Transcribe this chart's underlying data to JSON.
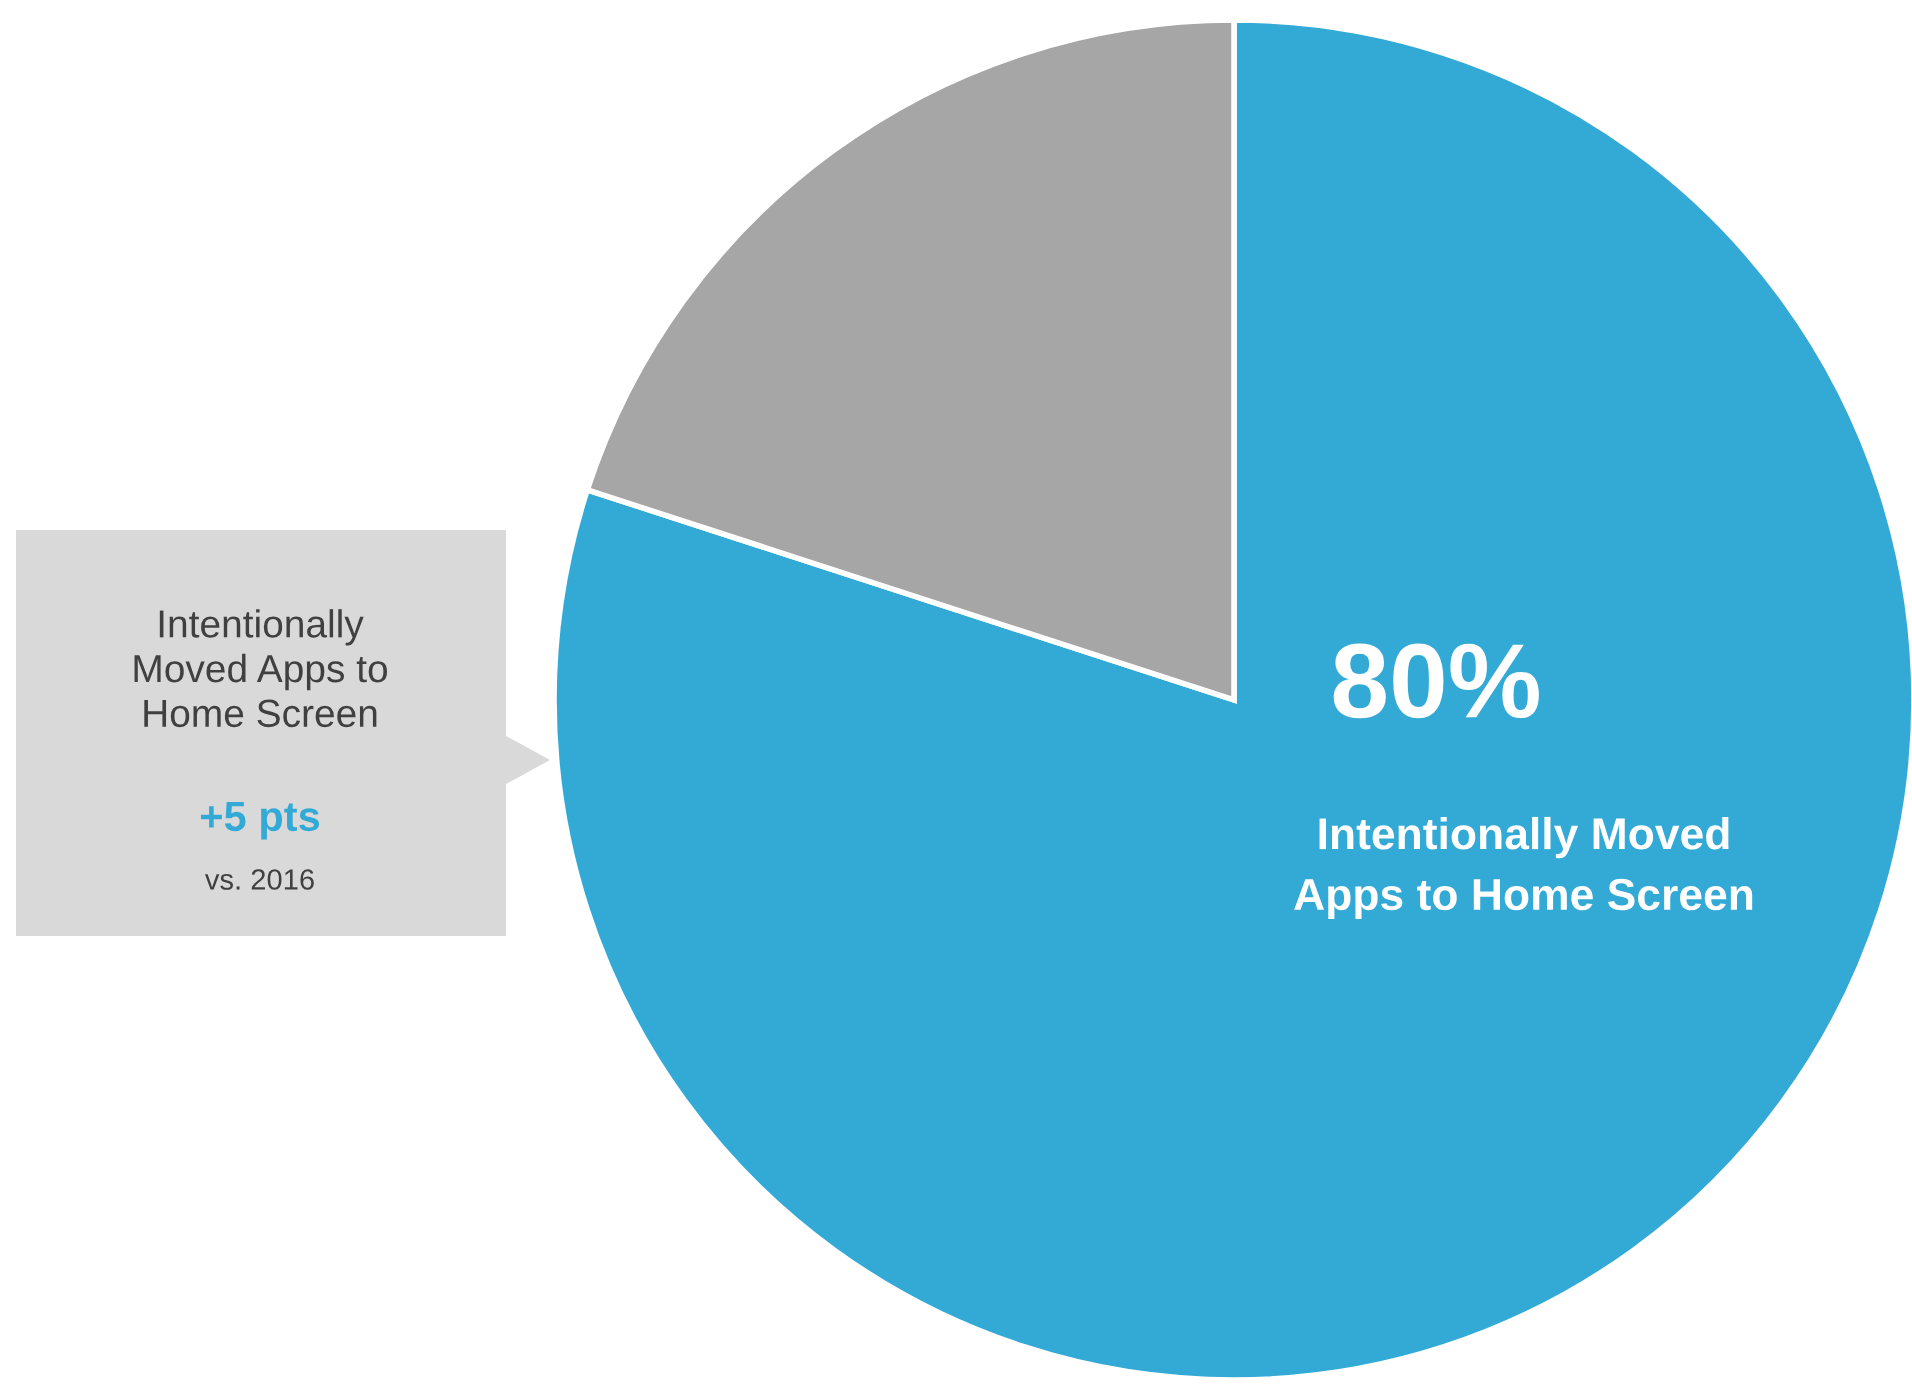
{
  "chart_data": {
    "type": "pie",
    "categories": [
      "Intentionally Moved\nApps to Home Screen",
      null
    ],
    "values": [
      80,
      20
    ],
    "colors": [
      "#33aad6",
      "#a6a6a6"
    ],
    "value_labels": [
      "80%",
      null
    ],
    "annotations": [
      "Intentionally\nMoved Apps to\nHome Screen",
      "+5 pts",
      "vs. 2016"
    ]
  }
}
